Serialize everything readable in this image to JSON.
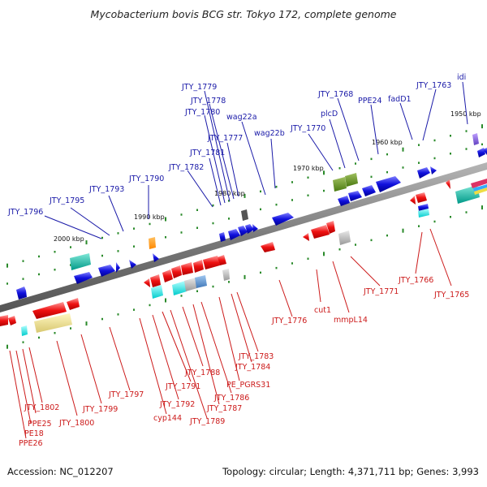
{
  "title": "Mycobacterium bovis BCG str. Tokyo 172, complete genome",
  "accession": "Accession: NC_012207",
  "summary": "Topology: circular; Length: 4,371,711 bp; Genes: 3,993",
  "ticks": [
    "1950 kbp",
    "1960 kbp",
    "1970 kbp",
    "1980 kbp",
    "1990 kbp",
    "2000 kbp"
  ],
  "top_labels": [
    "JTY_1796",
    "JTY_1795",
    "JTY_1793",
    "JTY_1790",
    "JTY_1782",
    "JTY_1781",
    "JTY_1780",
    "JTY_1779",
    "JTY_1778",
    "JTY_1777",
    "wag22a",
    "wag22b",
    "JTY_1770",
    "plcD",
    "JTY_1768",
    "PPE24",
    "fadD1",
    "JTY_1763",
    "idi"
  ],
  "bottom_labels": [
    "JTY_1802",
    "PPE25",
    "PE18",
    "PPE26",
    "JTY_1800",
    "JTY_1799",
    "JTY_1797",
    "cyp144",
    "JTY_1792",
    "JTY_1791",
    "JTY_1789",
    "JTY_1788",
    "JTY_1787",
    "JTY_1786",
    "PE_PGRS31",
    "JTY_1784",
    "JTY_1783",
    "JTY_1776",
    "cut1",
    "mmpL14",
    "JTY_1771",
    "JTY_1766",
    "JTY_1765"
  ],
  "colors": {
    "forward": "#1010dd",
    "reverse": "#ee1111",
    "top_label": "#1a1aa8",
    "bottom_label": "#cc1a1a"
  }
}
